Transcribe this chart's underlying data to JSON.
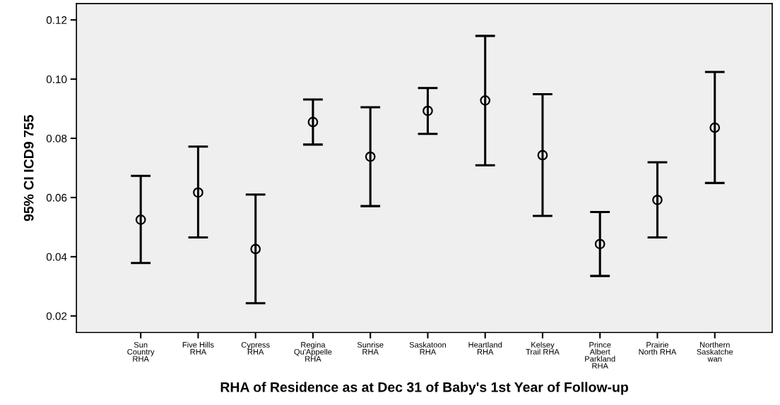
{
  "chart_data": {
    "type": "scatter",
    "xlabel": "RHA of Residence as at Dec 31 of Baby's 1st Year of Follow-up",
    "ylabel": "95% CI ICD9 755",
    "categories": [
      "Sun\nCountry\nRHA",
      "Five Hills\nRHA",
      "Cypress\nRHA",
      "Regina\nQu'Appelle\nRHA",
      "Sunrise\nRHA",
      "Saskatoon\nRHA",
      "Heartland\nRHA",
      "Kelsey\nTrail RHA",
      "Prince\nAlbert\nParkland\nRHA",
      "Prairie\nNorth RHA",
      "Northern\nSaskatche\nwan"
    ],
    "series": [
      {
        "color": "#000000",
        "values": [
          0.0525,
          0.0617,
          0.0426,
          0.0855,
          0.0738,
          0.0893,
          0.0928,
          0.0743,
          0.0443,
          0.0592,
          0.0836
        ],
        "errors": [
          [
            0.0379,
            0.0673
          ],
          [
            0.0465,
            0.0772
          ],
          [
            0.0243,
            0.061
          ],
          [
            0.0779,
            0.0931
          ],
          [
            0.0571,
            0.0905
          ],
          [
            0.0815,
            0.097
          ],
          [
            0.0709,
            0.1146
          ],
          [
            0.0538,
            0.0949
          ],
          [
            0.0335,
            0.0551
          ],
          [
            0.0465,
            0.0719
          ],
          [
            0.0649,
            0.1024
          ]
        ]
      }
    ],
    "ylim": [
      0.0144,
      0.1255
    ],
    "yticks": [
      {
        "value": 0.02,
        "label": "0.02"
      },
      {
        "value": 0.04,
        "label": "0.04"
      },
      {
        "value": 0.06,
        "label": "0.06"
      },
      {
        "value": 0.08,
        "label": "0.08"
      },
      {
        "value": 0.1,
        "label": "0.10"
      },
      {
        "value": 0.12,
        "label": "0.12"
      }
    ],
    "marker": "circle",
    "grid": false
  }
}
